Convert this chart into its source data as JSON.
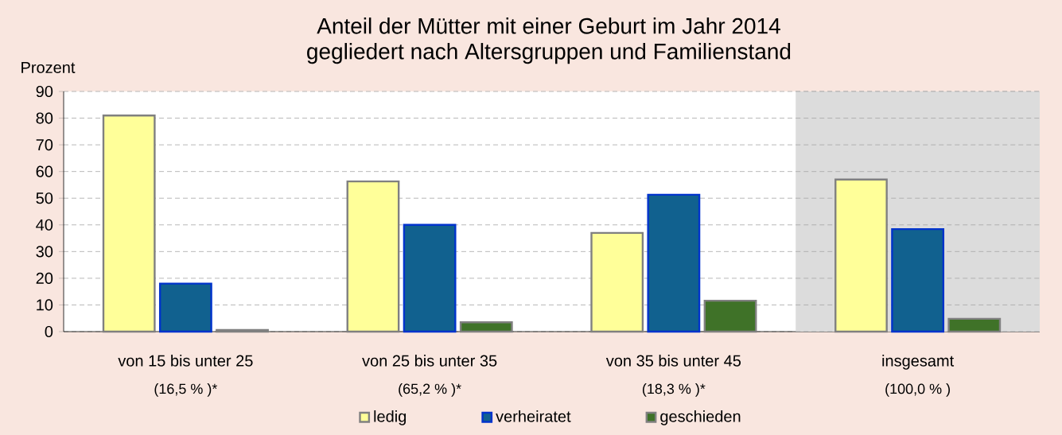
{
  "chart_data": {
    "type": "bar",
    "title": "Anteil der Mütter mit einer Geburt im Jahr 2014",
    "subtitle": "gegliedert nach Altersgruppen und Familienstand",
    "ylabel": "Prozent",
    "categories": [
      "von 15 bis unter 25",
      "von 25 bis unter 35",
      "von 35 bis unter 45",
      "insgesamt"
    ],
    "annotations": [
      "(16,5 % )*",
      "(65,2 % )*",
      "(18,3 % )*",
      "(100,0 % )"
    ],
    "series": [
      {
        "name": "ledig",
        "color": "#ffff99",
        "values": [
          81,
          56.3,
          37,
          57
        ]
      },
      {
        "name": "verheiratet",
        "color": "#11618f",
        "values": [
          18,
          40,
          51.3,
          38.4
        ]
      },
      {
        "name": "geschieden",
        "color": "#3f7228",
        "values": [
          0.6,
          3.5,
          11.6,
          4.8
        ]
      }
    ],
    "ylim": [
      0,
      90
    ],
    "yticks": [
      0,
      10,
      20,
      30,
      40,
      50,
      60,
      70,
      80,
      90
    ],
    "bands": [
      {
        "axis": "x",
        "from": "insgesamt",
        "to": "insgesamt",
        "color": "#dcdcdc"
      }
    ],
    "grid": "y",
    "legend": "bottom"
  }
}
